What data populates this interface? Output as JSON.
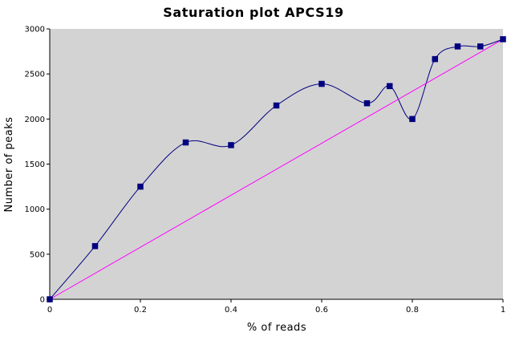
{
  "chart_data": {
    "type": "line",
    "title": "Saturation plot APCS19",
    "xlabel": "% of reads",
    "ylabel": "Number of peaks",
    "xlim": [
      0,
      1
    ],
    "ylim": [
      0,
      3000
    ],
    "x_ticks": [
      "0",
      "0.2",
      "0.4",
      "0.6",
      "0.8",
      "1"
    ],
    "y_ticks": [
      "0",
      "500",
      "1000",
      "1500",
      "2000",
      "2500",
      "3000"
    ],
    "grid": false,
    "plot_background": "#d3d3d3",
    "series": [
      {
        "type": "line",
        "smooth": true,
        "marker": "square",
        "color": "#000080",
        "x": [
          0,
          0.1,
          0.2,
          0.3,
          0.4,
          0.5,
          0.6,
          0.7,
          0.75,
          0.8,
          0.85,
          0.9,
          0.95,
          1.0
        ],
        "y": [
          0,
          590,
          1250,
          1740,
          1710,
          2150,
          2390,
          2175,
          2365,
          2000,
          2665,
          2805,
          2805,
          2885
        ]
      },
      {
        "type": "line",
        "smooth": false,
        "marker": "none",
        "color": "#ff00ff",
        "x": [
          0,
          1.0
        ],
        "y": [
          0,
          2885
        ]
      }
    ]
  }
}
